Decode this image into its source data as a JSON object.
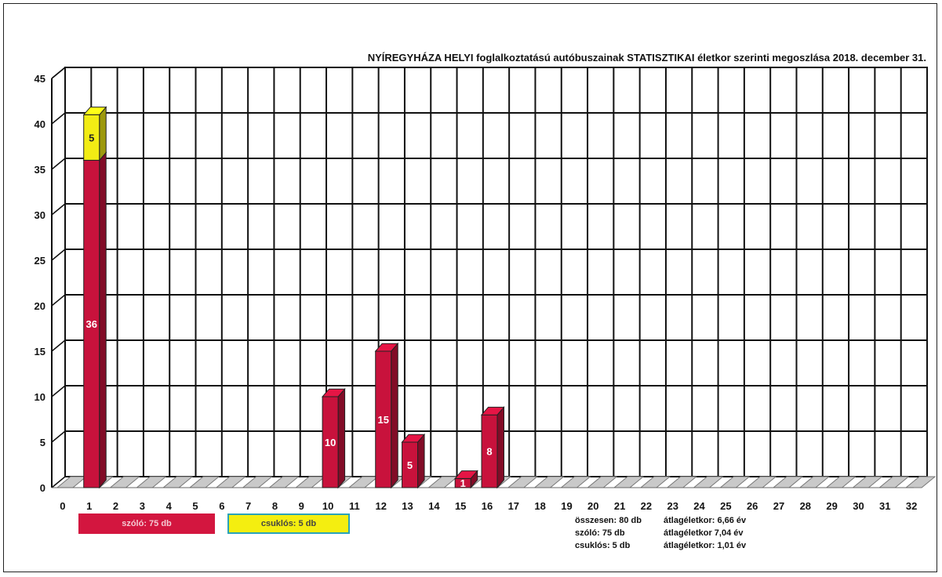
{
  "chart_data": {
    "type": "bar",
    "title": "NYÍREGYHÁZA HELYI  foglalkoztatású autóbuszainak STATISZTIKAI életkor szerinti megoszlása 2018. december 31.",
    "xlabel": "",
    "ylabel": "",
    "ylim": [
      0,
      45
    ],
    "yticks": [
      0,
      5,
      10,
      15,
      20,
      25,
      30,
      35,
      40,
      45
    ],
    "stacked": true,
    "grid": true,
    "categories": [
      "0",
      "1",
      "2",
      "3",
      "4",
      "5",
      "6",
      "7",
      "8",
      "9",
      "10",
      "11",
      "12",
      "13",
      "14",
      "15",
      "16",
      "17",
      "18",
      "19",
      "20",
      "21",
      "22",
      "23",
      "24",
      "25",
      "26",
      "27",
      "28",
      "29",
      "30",
      "31",
      "32"
    ],
    "series": [
      {
        "name": "szóló",
        "color": "#c8123c",
        "values": [
          0,
          36,
          0,
          0,
          0,
          0,
          0,
          0,
          0,
          0,
          10,
          0,
          15,
          5,
          0,
          1,
          8,
          0,
          0,
          0,
          0,
          0,
          0,
          0,
          0,
          0,
          0,
          0,
          0,
          0,
          0,
          0,
          0
        ]
      },
      {
        "name": "csuklós",
        "color": "#f2ec14",
        "values": [
          0,
          5,
          0,
          0,
          0,
          0,
          0,
          0,
          0,
          0,
          0,
          0,
          0,
          0,
          0,
          0,
          0,
          0,
          0,
          0,
          0,
          0,
          0,
          0,
          0,
          0,
          0,
          0,
          0,
          0,
          0,
          0,
          0
        ]
      }
    ]
  },
  "legend": {
    "szolo": "szóló: 75 db",
    "csuklos": "csuklós: 5 db"
  },
  "stats": {
    "line1_left": "összesen: 80 db",
    "line1_right": "átlagéletkor: 6,66 év",
    "line2_left": "szóló: 75 db",
    "line2_right": "átlagéletkor 7,04 év",
    "line3_left": "csuklós: 5 db",
    "line3_right": "átlagéletkor: 1,01 év"
  }
}
